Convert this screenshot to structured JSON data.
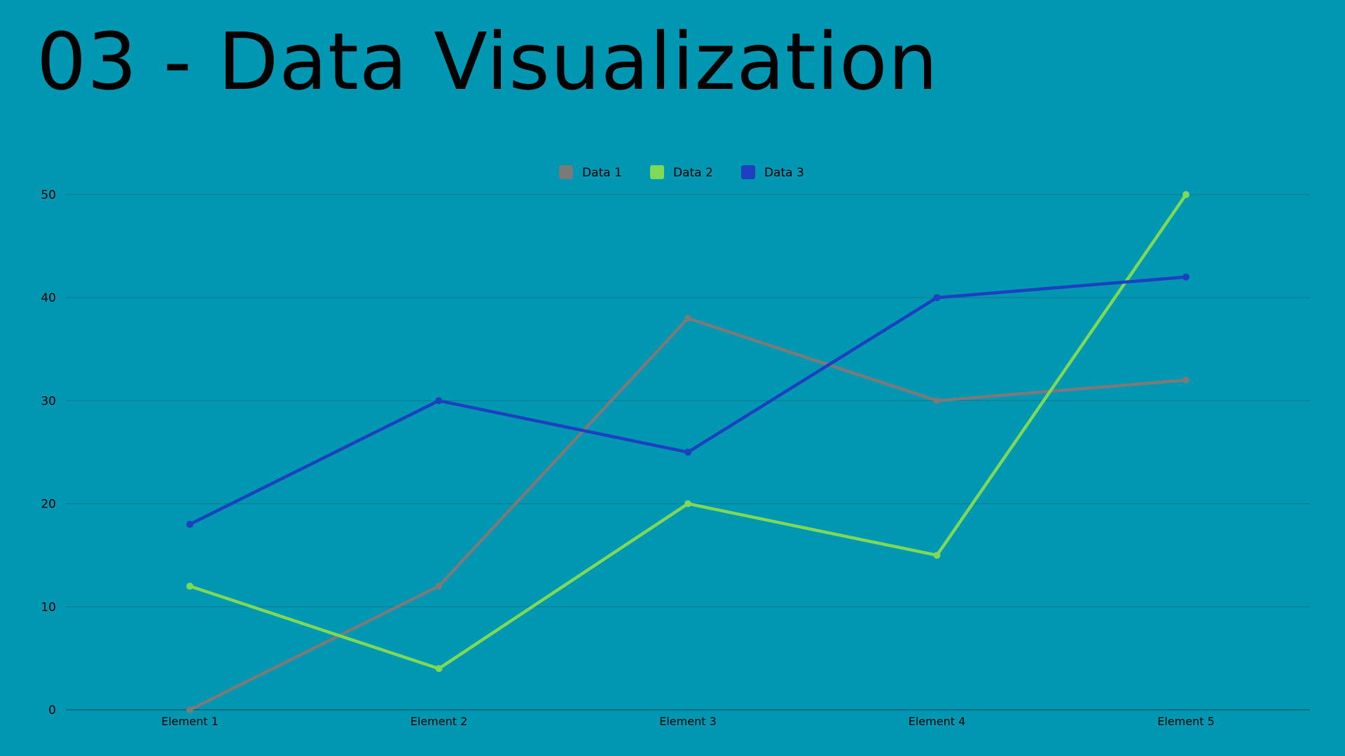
{
  "slide": {
    "title": "03 - Data Visualization"
  },
  "chart_data": {
    "type": "line",
    "title": "",
    "xlabel": "",
    "ylabel": "",
    "categories": [
      "Element 1",
      "Element 2",
      "Element 3",
      "Element 4",
      "Element 5"
    ],
    "ylim": [
      0,
      50
    ],
    "yticks": [
      0,
      10,
      20,
      30,
      40,
      50
    ],
    "grid": true,
    "legend_position": "top-center",
    "series": [
      {
        "name": "Data 1",
        "color": "#7a7a7a",
        "values": [
          0,
          12,
          38,
          30,
          32
        ]
      },
      {
        "name": "Data 2",
        "color": "#7ed957",
        "values": [
          12,
          4,
          20,
          15,
          50
        ]
      },
      {
        "name": "Data 3",
        "color": "#1e40c0",
        "values": [
          18,
          30,
          25,
          40,
          42
        ]
      }
    ]
  },
  "colors": {
    "background": "#0097b2",
    "text": "#000000",
    "gridline": "#0a7d95",
    "axis": "#0b5f75"
  }
}
